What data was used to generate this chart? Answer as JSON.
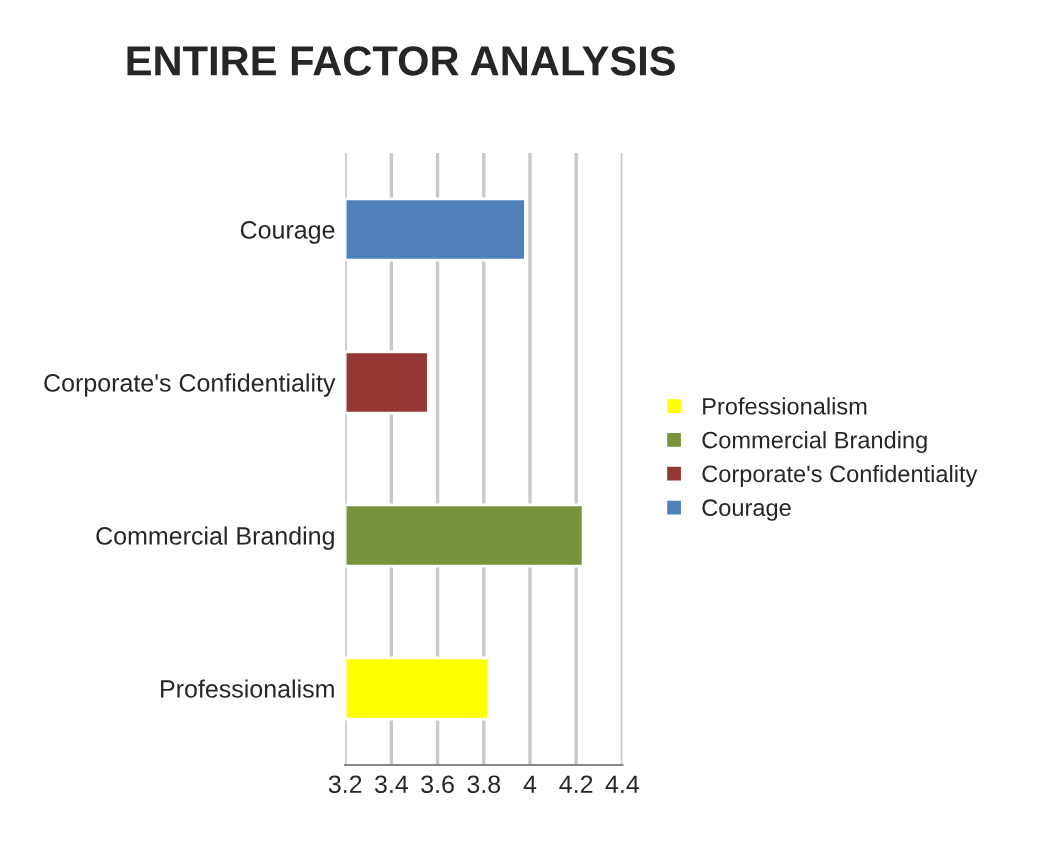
{
  "chart_data": {
    "type": "bar",
    "title": "ENTIRE FACTOR ANALYSIS",
    "orientation": "horizontal",
    "categories": [
      "Courage",
      "Corporate's Confidentiality",
      "Commercial Branding",
      "Professionalism"
    ],
    "series": [
      {
        "name": "Professionalism",
        "color": "#ffff00",
        "values": [
          null,
          null,
          null,
          3.82
        ]
      },
      {
        "name": "Commercial Branding",
        "color": "#77933c",
        "values": [
          null,
          null,
          4.23,
          null
        ]
      },
      {
        "name": "Corporate's Confidentiality",
        "color": "#953735",
        "values": [
          null,
          3.56,
          null,
          null
        ]
      },
      {
        "name": "Courage",
        "color": "#4f81bd",
        "values": [
          3.98,
          null,
          null,
          null
        ]
      }
    ],
    "xlim": [
      3.2,
      4.4
    ],
    "xticks": [
      3.2,
      3.4,
      3.6,
      3.8,
      4,
      4.2,
      4.4
    ],
    "grid": "x",
    "legend": "right"
  }
}
